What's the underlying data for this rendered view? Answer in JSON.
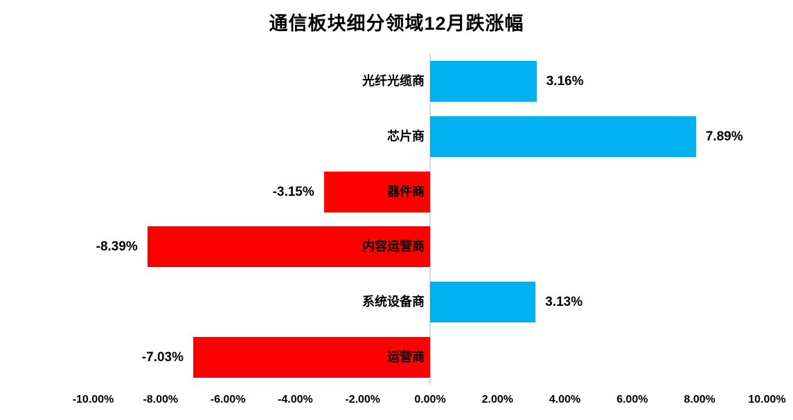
{
  "chart_data": {
    "type": "bar",
    "orientation": "horizontal",
    "title": "通信板块细分领域12月跌涨幅",
    "categories": [
      "光纤光缆商",
      "芯片商",
      "器件商",
      "内容运营商",
      "系统设备商",
      "运营商"
    ],
    "values": [
      3.16,
      7.89,
      -3.15,
      -8.39,
      3.13,
      -7.03
    ],
    "value_labels": [
      "3.16%",
      "7.89%",
      "-3.15%",
      "-8.39%",
      "3.13%",
      "-7.03%"
    ],
    "x_tick_labels": [
      "-10.00%",
      "-8.00%",
      "-6.00%",
      "-4.00%",
      "-2.00%",
      "0.00%",
      "2.00%",
      "4.00%",
      "6.00%",
      "8.00%",
      "10.00%"
    ],
    "x_tick_values": [
      -10,
      -8,
      -6,
      -4,
      -2,
      0,
      2,
      4,
      6,
      8,
      10
    ],
    "xlim": [
      -10,
      10
    ],
    "grid": "off",
    "legend": "none",
    "colors": {
      "positive_bar": "#00B0F0",
      "negative_bar": "#FF0000",
      "axis_line": "#D9D9D9",
      "text": "#000000",
      "background": "#FFFFFF"
    }
  }
}
